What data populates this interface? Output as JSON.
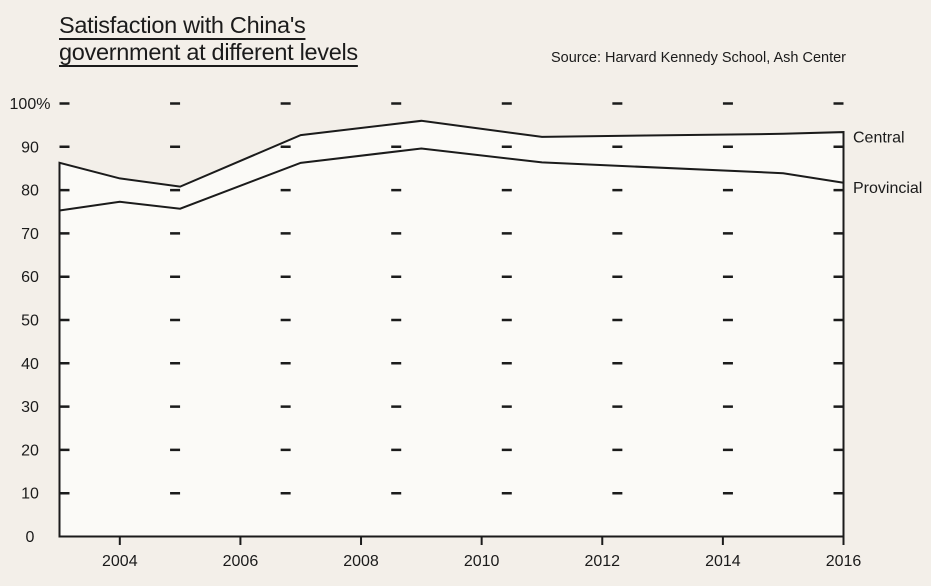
{
  "header": {
    "title_line1": "Satisfaction with China's",
    "title_line2": "government at different levels",
    "source": "Source: Harvard Kennedy School, Ash Center"
  },
  "colors": {
    "background": "#f3efe9",
    "plot_fill": "#fbfaf7",
    "ink": "#1b1b1b"
  },
  "chart_data": {
    "type": "line",
    "title": "Satisfaction with China's government at different levels",
    "source": "Source: Harvard Kennedy School, Ash Center",
    "x": [
      2003,
      2004,
      2005,
      2007,
      2009,
      2011,
      2015,
      2016
    ],
    "series": [
      {
        "name": "Central",
        "values": [
          86.3,
          82.7,
          80.8,
          92.7,
          96.0,
          92.3,
          93.0,
          93.4
        ]
      },
      {
        "name": "Provincial",
        "values": [
          75.3,
          77.3,
          75.7,
          86.3,
          89.6,
          86.4,
          83.9,
          81.7
        ]
      }
    ],
    "xlim": [
      2003,
      2016
    ],
    "ylim": [
      0,
      100
    ],
    "xticks": [
      2004,
      2006,
      2008,
      2010,
      2012,
      2014,
      2016
    ],
    "xtick_labels": [
      "2004",
      "2006",
      "2008",
      "2010",
      "2012",
      "2014",
      "2016"
    ],
    "ytick_values": [
      0,
      10,
      20,
      30,
      40,
      50,
      60,
      70,
      80,
      90,
      100
    ],
    "ytick_labels": [
      "0",
      "10",
      "20",
      "30",
      "40",
      "50",
      "60",
      "70",
      "80",
      "90",
      "100%"
    ],
    "grid": "dashed horizontal rows at every 10 units, dashes aligned in columns",
    "legend_position": "labels at right ends of lines",
    "area_fill_under_series": "Central"
  }
}
